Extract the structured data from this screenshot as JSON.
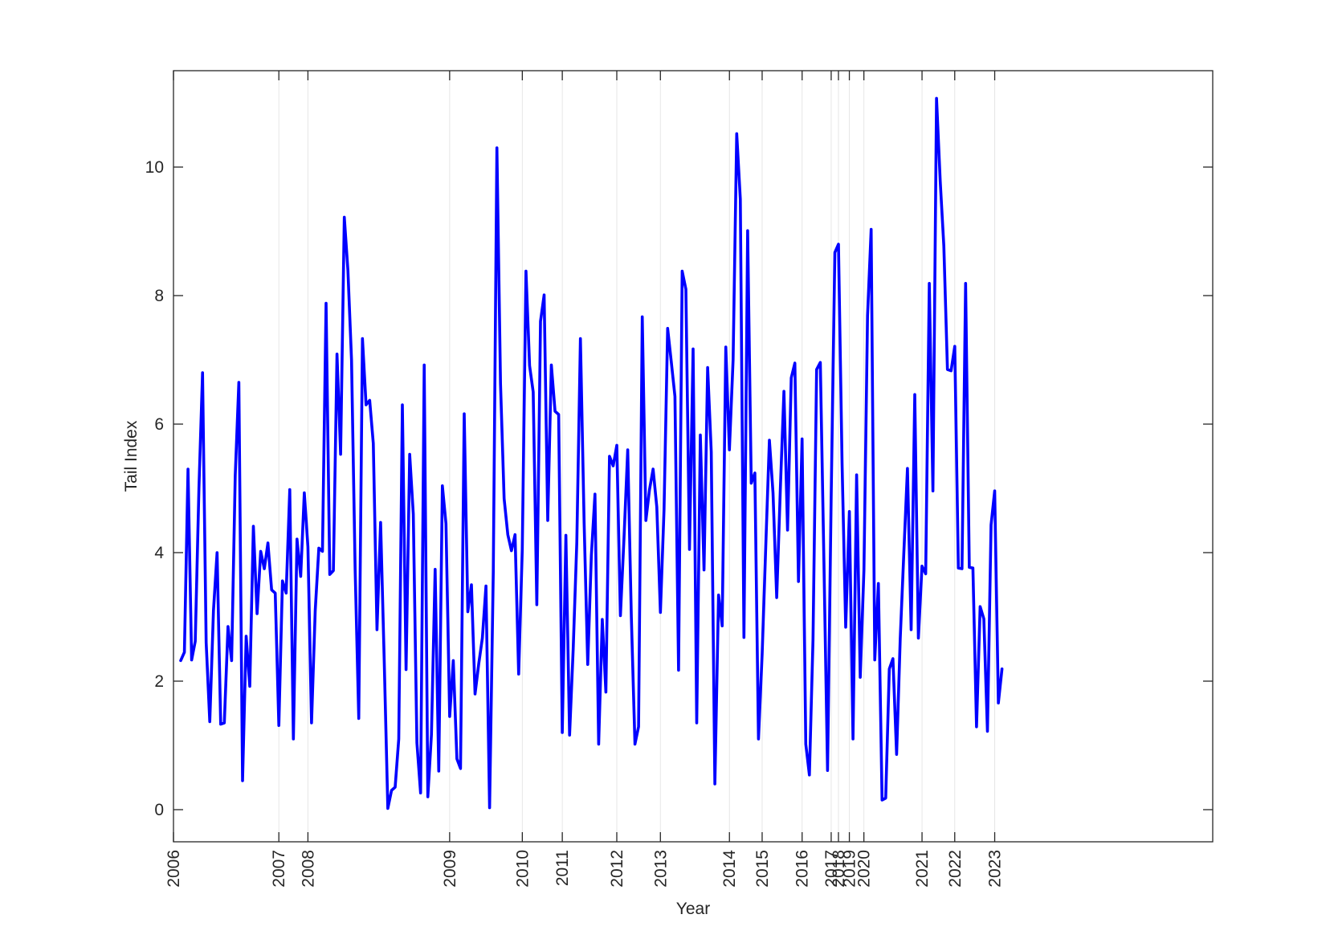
{
  "chart_data": {
    "type": "line",
    "xlabel": "Year",
    "ylabel": "Tail Index",
    "xlim": [
      0,
      286
    ],
    "ylim": [
      -0.5,
      11.5
    ],
    "y_ticks": [
      0,
      2,
      4,
      6,
      8,
      10
    ],
    "grid_x": true,
    "grid_y": false,
    "line_color": "#0000ff",
    "x_ticks": [
      {
        "pos": 0,
        "label": "2006"
      },
      {
        "pos": 29,
        "label": "2007"
      },
      {
        "pos": 37,
        "label": "2008"
      },
      {
        "pos": 76,
        "label": "2009"
      },
      {
        "pos": 96,
        "label": "2010"
      },
      {
        "pos": 107,
        "label": "2011"
      },
      {
        "pos": 122,
        "label": "2012"
      },
      {
        "pos": 134,
        "label": "2013"
      },
      {
        "pos": 153,
        "label": "2014"
      },
      {
        "pos": 162,
        "label": "2015"
      },
      {
        "pos": 173,
        "label": "2016"
      },
      {
        "pos": 181,
        "label": "2017"
      },
      {
        "pos": 183,
        "label": "2018"
      },
      {
        "pos": 186,
        "label": "2019"
      },
      {
        "pos": 190,
        "label": "2020"
      },
      {
        "pos": 206,
        "label": "2021"
      },
      {
        "pos": 215,
        "label": "2022"
      },
      {
        "pos": 226,
        "label": "2023"
      }
    ],
    "series": [
      {
        "values": [
          [
            2,
            2.32
          ],
          [
            3,
            2.45
          ],
          [
            4,
            5.3
          ],
          [
            5,
            2.33
          ],
          [
            6,
            2.62
          ],
          [
            7,
            5.0
          ],
          [
            8,
            6.8
          ],
          [
            9,
            2.6
          ],
          [
            10,
            1.37
          ],
          [
            11,
            3.1
          ],
          [
            12,
            4.0
          ],
          [
            13,
            1.33
          ],
          [
            14,
            1.35
          ],
          [
            15,
            2.85
          ],
          [
            16,
            2.32
          ],
          [
            17,
            5.2
          ],
          [
            18,
            6.65
          ],
          [
            19,
            0.45
          ],
          [
            20,
            2.7
          ],
          [
            21,
            1.92
          ],
          [
            22,
            4.41
          ],
          [
            23,
            3.05
          ],
          [
            24,
            4.02
          ],
          [
            25,
            3.75
          ],
          [
            26,
            4.15
          ],
          [
            27,
            3.42
          ],
          [
            28,
            3.37
          ],
          [
            29,
            1.31
          ],
          [
            30,
            3.56
          ],
          [
            31,
            3.37
          ],
          [
            32,
            4.98
          ],
          [
            33,
            1.1
          ],
          [
            34,
            4.21
          ],
          [
            35,
            3.63
          ],
          [
            36,
            4.93
          ],
          [
            37,
            4.09
          ],
          [
            38,
            1.35
          ],
          [
            39,
            3.1
          ],
          [
            40,
            4.07
          ],
          [
            41,
            4.02
          ],
          [
            42,
            7.88
          ],
          [
            43,
            3.66
          ],
          [
            44,
            3.72
          ],
          [
            45,
            7.09
          ],
          [
            46,
            5.53
          ],
          [
            47,
            9.22
          ],
          [
            48,
            8.39
          ],
          [
            49,
            7.0
          ],
          [
            50,
            3.74
          ],
          [
            51,
            1.42
          ],
          [
            52,
            7.33
          ],
          [
            53,
            6.3
          ],
          [
            54,
            6.37
          ],
          [
            55,
            5.7
          ],
          [
            56,
            2.8
          ],
          [
            57,
            4.47
          ],
          [
            58,
            2.32
          ],
          [
            59,
            0.02
          ],
          [
            60,
            0.3
          ],
          [
            61,
            0.35
          ],
          [
            62,
            1.1
          ],
          [
            63,
            6.3
          ],
          [
            64,
            2.18
          ],
          [
            65,
            5.53
          ],
          [
            66,
            4.6
          ],
          [
            67,
            1.04
          ],
          [
            68,
            0.26
          ],
          [
            69,
            6.92
          ],
          [
            70,
            0.2
          ],
          [
            71,
            1.17
          ],
          [
            72,
            3.74
          ],
          [
            73,
            0.6
          ],
          [
            74,
            5.04
          ],
          [
            75,
            4.45
          ],
          [
            76,
            1.45
          ],
          [
            77,
            2.32
          ],
          [
            78,
            0.79
          ],
          [
            79,
            0.64
          ],
          [
            80,
            6.16
          ],
          [
            81,
            3.08
          ],
          [
            82,
            3.5
          ],
          [
            83,
            1.8
          ],
          [
            84,
            2.27
          ],
          [
            85,
            2.67
          ],
          [
            86,
            3.48
          ],
          [
            87,
            0.03
          ],
          [
            88,
            3.7
          ],
          [
            89,
            10.3
          ],
          [
            90,
            6.63
          ],
          [
            91,
            4.84
          ],
          [
            92,
            4.28
          ],
          [
            93,
            4.03
          ],
          [
            94,
            4.28
          ],
          [
            95,
            2.11
          ],
          [
            96,
            4.05
          ],
          [
            97,
            8.38
          ],
          [
            98,
            6.91
          ],
          [
            99,
            6.5
          ],
          [
            100,
            3.19
          ],
          [
            101,
            7.6
          ],
          [
            102,
            8.01
          ],
          [
            103,
            4.5
          ],
          [
            104,
            6.92
          ],
          [
            105,
            6.2
          ],
          [
            106,
            6.15
          ],
          [
            107,
            1.2
          ],
          [
            108,
            4.27
          ],
          [
            109,
            1.16
          ],
          [
            110,
            2.5
          ],
          [
            111,
            4.16
          ],
          [
            112,
            7.33
          ],
          [
            113,
            4.47
          ],
          [
            114,
            2.26
          ],
          [
            115,
            3.95
          ],
          [
            116,
            4.91
          ],
          [
            117,
            1.02
          ],
          [
            118,
            2.96
          ],
          [
            119,
            1.83
          ],
          [
            120,
            5.5
          ],
          [
            121,
            5.35
          ],
          [
            122,
            5.67
          ],
          [
            123,
            3.02
          ],
          [
            124,
            4.24
          ],
          [
            125,
            5.6
          ],
          [
            126,
            3.0
          ],
          [
            127,
            1.02
          ],
          [
            128,
            1.29
          ],
          [
            129,
            7.67
          ],
          [
            130,
            4.5
          ],
          [
            131,
            4.98
          ],
          [
            132,
            5.3
          ],
          [
            133,
            4.71
          ],
          [
            134,
            3.07
          ],
          [
            135,
            4.67
          ],
          [
            136,
            7.49
          ],
          [
            137,
            6.96
          ],
          [
            138,
            6.43
          ],
          [
            139,
            2.17
          ],
          [
            140,
            8.38
          ],
          [
            141,
            8.1
          ],
          [
            142,
            4.05
          ],
          [
            143,
            7.17
          ],
          [
            144,
            1.35
          ],
          [
            145,
            5.83
          ],
          [
            146,
            3.73
          ],
          [
            147,
            6.88
          ],
          [
            148,
            5.57
          ],
          [
            149,
            0.4
          ],
          [
            150,
            3.34
          ],
          [
            151,
            2.86
          ],
          [
            152,
            7.2
          ],
          [
            153,
            5.6
          ],
          [
            154,
            7.0
          ],
          [
            155,
            10.52
          ],
          [
            156,
            9.5
          ],
          [
            157,
            2.68
          ],
          [
            158,
            9.01
          ],
          [
            159,
            5.08
          ],
          [
            160,
            5.24
          ],
          [
            161,
            1.1
          ],
          [
            162,
            2.43
          ],
          [
            163,
            4.11
          ],
          [
            164,
            5.75
          ],
          [
            165,
            4.93
          ],
          [
            166,
            3.3
          ],
          [
            167,
            4.98
          ],
          [
            168,
            6.51
          ],
          [
            169,
            4.35
          ],
          [
            170,
            6.72
          ],
          [
            171,
            6.95
          ],
          [
            172,
            3.55
          ],
          [
            173,
            5.77
          ],
          [
            174,
            1.02
          ],
          [
            175,
            0.54
          ],
          [
            176,
            2.65
          ],
          [
            177,
            6.85
          ],
          [
            178,
            6.96
          ],
          [
            179,
            3.85
          ],
          [
            180,
            0.61
          ],
          [
            181,
            4.85
          ],
          [
            182,
            8.67
          ],
          [
            183,
            8.8
          ],
          [
            184,
            5.38
          ],
          [
            185,
            2.84
          ],
          [
            186,
            4.64
          ],
          [
            187,
            1.1
          ],
          [
            188,
            5.21
          ],
          [
            189,
            2.06
          ],
          [
            190,
            3.73
          ],
          [
            191,
            7.69
          ],
          [
            192,
            9.03
          ],
          [
            193,
            2.33
          ],
          [
            194,
            3.52
          ],
          [
            195,
            0.15
          ],
          [
            196,
            0.18
          ],
          [
            197,
            2.19
          ],
          [
            198,
            2.35
          ],
          [
            199,
            0.86
          ],
          [
            200,
            2.66
          ],
          [
            201,
            4.0
          ],
          [
            202,
            5.31
          ],
          [
            203,
            2.8
          ],
          [
            204,
            6.46
          ],
          [
            205,
            2.67
          ],
          [
            206,
            3.79
          ],
          [
            207,
            3.67
          ],
          [
            208,
            8.19
          ],
          [
            209,
            4.96
          ],
          [
            210,
            11.07
          ],
          [
            211,
            9.78
          ],
          [
            212,
            8.77
          ],
          [
            213,
            6.85
          ],
          [
            214,
            6.83
          ],
          [
            215,
            7.21
          ],
          [
            216,
            3.76
          ],
          [
            217,
            3.75
          ],
          [
            218,
            8.19
          ],
          [
            219,
            3.77
          ],
          [
            220,
            3.76
          ],
          [
            221,
            1.29
          ],
          [
            222,
            3.16
          ],
          [
            223,
            2.97
          ],
          [
            224,
            1.22
          ],
          [
            225,
            4.43
          ],
          [
            226,
            4.96
          ],
          [
            227,
            1.66
          ],
          [
            228,
            2.19
          ]
        ]
      }
    ]
  }
}
